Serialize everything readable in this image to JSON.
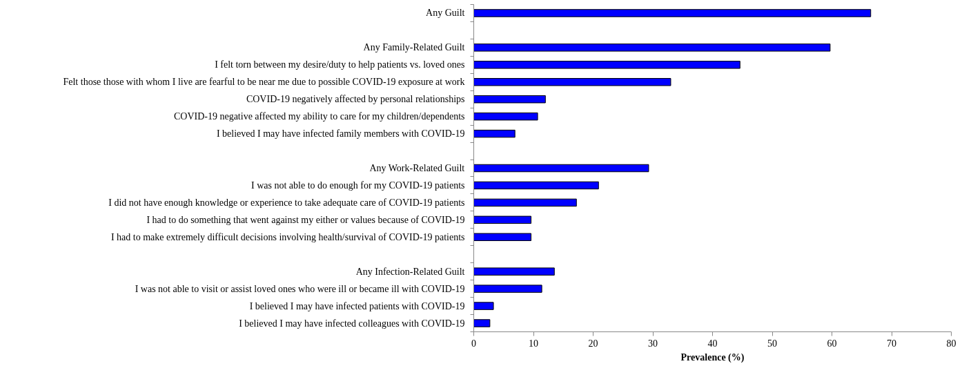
{
  "chart_data": {
    "type": "bar",
    "orientation": "horizontal",
    "xlabel": "Prevalence (%)",
    "categories": [
      "Any Guilt",
      null,
      "Any Family-Related Guilt",
      "I felt torn between my desire/duty to help patients vs. loved ones",
      "Felt those those with whom I live are fearful to be near me due to possible COVID-19 exposure at work",
      "COVID-19 negatively affected by personal relationships",
      "COVID-19 negative affected my ability to care for my children/dependents",
      "I believed I may have infected family members with COVID-19",
      null,
      "Any Work-Related Guilt",
      "I was not able to do enough for my COVID-19 patients",
      "I did not have enough knowledge or experience to take adequate care of COVID-19 patients",
      "I had to do something that went against my either or values because of COVID-19",
      "I had to make extremely difficult decisions involving health/survival of COVID-19 patients",
      null,
      "Any Infection-Related Guilt",
      "I was not able to visit or assist loved ones who were ill or became ill with COVID-19",
      "I believed I may have infected patients with COVID-19",
      "I believed I may have infected colleagues with COVID-19"
    ],
    "values": [
      66.5,
      null,
      59.7,
      44.6,
      33.0,
      12.0,
      10.7,
      6.9,
      null,
      29.3,
      20.9,
      17.2,
      9.6,
      9.6,
      null,
      13.5,
      11.4,
      3.3,
      2.7
    ],
    "color": "#0000ff",
    "xlim": [
      0,
      80
    ],
    "xticks": [
      0,
      10,
      20,
      30,
      40,
      50,
      60,
      70,
      80
    ],
    "grid": false
  }
}
